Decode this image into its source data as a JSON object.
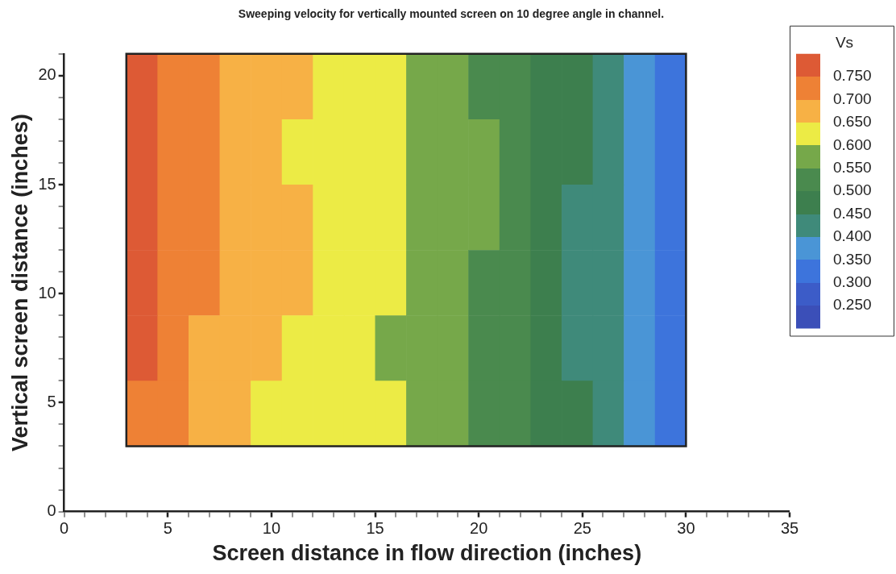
{
  "chart_data": {
    "type": "heatmap",
    "title": "Sweeping velocity for vertically mounted screen on 10 degree angle in channel.",
    "xlabel": "Screen distance in flow direction (inches)",
    "ylabel": "Vertical screen distance (inches)",
    "clabel": "Vs",
    "x": [
      3.75,
      5.25,
      6.75,
      8.25,
      9.75,
      11.25,
      12.75,
      14.25,
      15.75,
      17.25,
      18.75,
      20.25,
      21.75,
      23.25,
      24.75,
      26.25,
      27.75,
      29.25
    ],
    "y": [
      19.5,
      16.5,
      13.5,
      10.5,
      7.5,
      4.5
    ],
    "cells": [
      [
        0.76,
        0.74,
        0.71,
        0.69,
        0.68,
        0.66,
        0.64,
        0.62,
        0.61,
        0.59,
        0.57,
        0.54,
        0.52,
        0.49,
        0.46,
        0.42,
        0.38,
        0.34
      ],
      [
        0.76,
        0.73,
        0.71,
        0.69,
        0.67,
        0.64,
        0.63,
        0.62,
        0.61,
        0.58,
        0.57,
        0.56,
        0.52,
        0.49,
        0.46,
        0.42,
        0.37,
        0.34
      ],
      [
        0.76,
        0.73,
        0.71,
        0.69,
        0.67,
        0.66,
        0.64,
        0.62,
        0.61,
        0.59,
        0.57,
        0.56,
        0.52,
        0.49,
        0.44,
        0.41,
        0.36,
        0.34
      ],
      [
        0.76,
        0.73,
        0.71,
        0.69,
        0.67,
        0.66,
        0.64,
        0.62,
        0.61,
        0.59,
        0.56,
        0.53,
        0.51,
        0.48,
        0.44,
        0.41,
        0.36,
        0.34
      ],
      [
        0.76,
        0.72,
        0.69,
        0.68,
        0.66,
        0.64,
        0.63,
        0.61,
        0.59,
        0.58,
        0.56,
        0.54,
        0.51,
        0.48,
        0.44,
        0.41,
        0.37,
        0.34
      ],
      [
        0.74,
        0.71,
        0.69,
        0.67,
        0.64,
        0.64,
        0.62,
        0.61,
        0.61,
        0.58,
        0.56,
        0.54,
        0.51,
        0.49,
        0.46,
        0.42,
        0.38,
        0.34
      ]
    ],
    "clim": [
      0.2,
      0.8
    ],
    "cticks": [
      {
        "value": 0.25,
        "label": "0.250"
      },
      {
        "value": 0.3,
        "label": "0.300"
      },
      {
        "value": 0.35,
        "label": "0.350"
      },
      {
        "value": 0.4,
        "label": "0.400"
      },
      {
        "value": 0.45,
        "label": "0.450"
      },
      {
        "value": 0.5,
        "label": "0.500"
      },
      {
        "value": 0.55,
        "label": "0.550"
      },
      {
        "value": 0.6,
        "label": "0.600"
      },
      {
        "value": 0.65,
        "label": "0.650"
      },
      {
        "value": 0.7,
        "label": "0.700"
      },
      {
        "value": 0.75,
        "label": "0.750"
      }
    ],
    "colors": [
      "#3b4fb8",
      "#3c5cc8",
      "#3d74dc",
      "#4a95d6",
      "#3f8a7a",
      "#3d7f4e",
      "#4a8a4e",
      "#76a84a",
      "#eceb45",
      "#f7b145",
      "#ee8135",
      "#dd5a35"
    ],
    "xlim": [
      0,
      35
    ],
    "xticks": [
      0,
      {
        "value": 1,
        "label": null
      },
      {
        "value": 2,
        "label": null
      },
      {
        "value": 3,
        "label": null
      },
      {
        "value": 4,
        "label": null
      },
      5,
      {
        "value": 6,
        "label": null
      },
      {
        "value": 7,
        "label": null
      },
      {
        "value": 8,
        "label": null
      },
      {
        "value": 9,
        "label": null
      },
      10,
      {
        "value": 11,
        "label": null
      },
      {
        "value": 12,
        "label": null
      },
      {
        "value": 13,
        "label": null
      },
      {
        "value": 14,
        "label": null
      },
      15,
      {
        "value": 16,
        "label": null
      },
      {
        "value": 17,
        "label": null
      },
      {
        "value": 18,
        "label": null
      },
      {
        "value": 19,
        "label": null
      },
      20,
      {
        "value": 21,
        "label": null
      },
      {
        "value": 22,
        "label": null
      },
      {
        "value": 23,
        "label": null
      },
      {
        "value": 24,
        "label": null
      },
      25,
      {
        "value": 26,
        "label": null
      },
      {
        "value": 27,
        "label": null
      },
      {
        "value": 28,
        "label": null
      },
      {
        "value": 29,
        "label": null
      },
      30,
      {
        "value": 31,
        "label": null
      },
      {
        "value": 32,
        "label": null
      },
      {
        "value": 33,
        "label": null
      },
      {
        "value": 34,
        "label": null
      },
      35
    ],
    "ylim": [
      0,
      21
    ],
    "yticks": [
      0,
      {
        "value": 1,
        "label": null
      },
      {
        "value": 2,
        "label": null
      },
      {
        "value": 3,
        "label": null
      },
      {
        "value": 4,
        "label": null
      },
      5,
      {
        "value": 6,
        "label": null
      },
      {
        "value": 7,
        "label": null
      },
      {
        "value": 8,
        "label": null
      },
      {
        "value": 9,
        "label": null
      },
      10,
      {
        "value": 11,
        "label": null
      },
      {
        "value": 12,
        "label": null
      },
      {
        "value": 13,
        "label": null
      },
      {
        "value": 14,
        "label": null
      },
      15,
      {
        "value": 16,
        "label": null
      },
      {
        "value": 17,
        "label": null
      },
      {
        "value": 18,
        "label": null
      },
      {
        "value": 19,
        "label": null
      },
      20,
      {
        "value": 21,
        "label": null
      }
    ],
    "grid": false
  }
}
